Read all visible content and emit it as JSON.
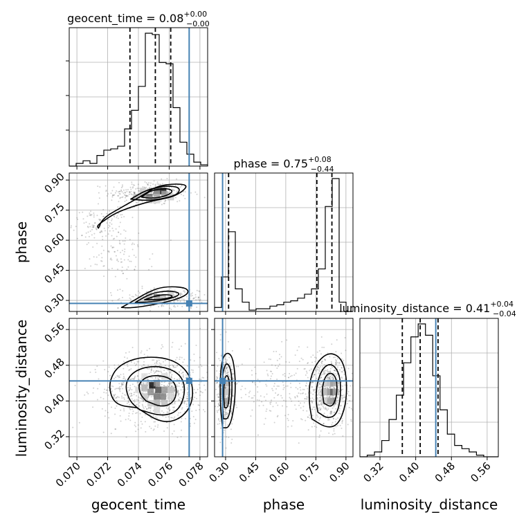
{
  "colors": {
    "truth": "#4682b4",
    "hist": "#000000",
    "quantile": "#000000",
    "grid": "#b0b0b0",
    "scatter": "#555555"
  },
  "chart_data": {
    "type": "corner",
    "parameters": [
      "geocent_time",
      "phase",
      "luminosity_distance"
    ],
    "axis_labels": {
      "geocent_time": "geocent_time",
      "phase": "phase",
      "luminosity_distance": "luminosity_distance"
    },
    "ranges": {
      "geocent_time": [
        0.0695,
        0.0785
      ],
      "phase": [
        0.245,
        0.935
      ],
      "luminosity_distance": [
        0.275,
        0.585
      ]
    },
    "ticks": {
      "geocent_time": [
        "0.070",
        "0.072",
        "0.074",
        "0.076",
        "0.078"
      ],
      "phase": [
        "0.30",
        "0.45",
        "0.60",
        "0.75",
        "0.90"
      ],
      "luminosity_distance": [
        "0.32",
        "0.40",
        "0.48",
        "0.56"
      ]
    },
    "titles": [
      {
        "name": "geocent_time",
        "value": "0.08",
        "plus": "+0.00",
        "minus": "−0.00"
      },
      {
        "name": "phase",
        "value": "0.75",
        "plus": "+0.08",
        "minus": "−0.44"
      },
      {
        "name": "luminosity_distance",
        "value": "0.41",
        "plus": "+0.04",
        "minus": "−0.04"
      }
    ],
    "truths": {
      "geocent_time": 0.0773,
      "phase": 0.285,
      "luminosity_distance": 0.445
    },
    "quantiles": {
      "geocent_time": [
        0.07345,
        0.0751,
        0.0761
      ],
      "phase": [
        0.315,
        0.755,
        0.83
      ],
      "luminosity_distance": [
        0.37,
        0.41,
        0.45
      ]
    },
    "histograms": {
      "geocent_time": {
        "edges_range": [
          0.0695,
          0.0785
        ],
        "counts": [
          0,
          2,
          4,
          2,
          8,
          12,
          13,
          15,
          28,
          42,
          60,
          100,
          99,
          78,
          77,
          44,
          18,
          9,
          3,
          1
        ]
      },
      "phase": {
        "edges_range": [
          0.245,
          0.935
        ],
        "counts": [
          3,
          26,
          60,
          17,
          7,
          1,
          2,
          2,
          4,
          5,
          7,
          8,
          10,
          13,
          17,
          32,
          79,
          100,
          7,
          0
        ]
      },
      "luminosity_distance": {
        "edges_range": [
          0.275,
          0.585
        ],
        "counts": [
          0,
          1,
          3,
          10,
          23,
          38,
          58,
          74,
          82,
          75,
          50,
          29,
          14,
          7,
          5,
          3,
          1,
          0,
          0
        ]
      }
    },
    "pairs": [
      {
        "x": "geocent_time",
        "y": "phase",
        "clouds": [
          {
            "cx": 0.0747,
            "cy": 0.835,
            "sx": 0.0013,
            "sy": 0.03,
            "n": 340
          },
          {
            "cx": 0.0715,
            "cy": 0.68,
            "sx": 0.0009,
            "sy": 0.04,
            "n": 120
          },
          {
            "cx": 0.0728,
            "cy": 0.52,
            "sx": 0.0011,
            "sy": 0.06,
            "n": 90
          },
          {
            "cx": 0.0758,
            "cy": 0.31,
            "sx": 0.0015,
            "sy": 0.025,
            "n": 230
          }
        ],
        "dark_cells": [
          {
            "x": 0.0756,
            "y": 0.845,
            "shade": 0.92
          },
          {
            "x": 0.0752,
            "y": 0.845,
            "shade": 0.75
          },
          {
            "x": 0.0747,
            "y": 0.815,
            "shade": 0.6
          },
          {
            "x": 0.0752,
            "y": 0.83,
            "shade": 0.4
          },
          {
            "x": 0.0743,
            "y": 0.83,
            "shade": 0.35
          },
          {
            "x": 0.0757,
            "y": 0.83,
            "shade": 0.35
          },
          {
            "x": 0.0739,
            "y": 0.815,
            "shade": 0.25
          },
          {
            "x": 0.0752,
            "y": 0.815,
            "shade": 0.3
          },
          {
            "x": 0.0761,
            "y": 0.815,
            "shade": 0.2
          },
          {
            "x": 0.0747,
            "y": 0.8,
            "shade": 0.2
          },
          {
            "x": 0.0752,
            "y": 0.8,
            "shade": 0.15
          },
          {
            "x": 0.0743,
            "y": 0.845,
            "shade": 0.2
          },
          {
            "x": 0.0752,
            "y": 0.315,
            "shade": 0.6
          },
          {
            "x": 0.0747,
            "y": 0.315,
            "shade": 0.4
          },
          {
            "x": 0.0756,
            "y": 0.315,
            "shade": 0.25
          },
          {
            "x": 0.0752,
            "y": 0.3,
            "shade": 0.25
          },
          {
            "x": 0.0743,
            "y": 0.3,
            "shade": 0.18
          },
          {
            "x": 0.0761,
            "y": 0.33,
            "shade": 0.18
          },
          {
            "x": 0.0747,
            "y": 0.33,
            "shade": 0.2
          }
        ],
        "contours": [
          [
            [
              0.0714,
              0.66
            ],
            [
              0.0717,
              0.71
            ],
            [
              0.0728,
              0.76
            ],
            [
              0.0742,
              0.82
            ],
            [
              0.0752,
              0.87
            ],
            [
              0.0764,
              0.882
            ],
            [
              0.0772,
              0.875
            ],
            [
              0.0769,
              0.845
            ],
            [
              0.0762,
              0.815
            ],
            [
              0.0748,
              0.795
            ],
            [
              0.0735,
              0.765
            ],
            [
              0.0725,
              0.735
            ],
            [
              0.0718,
              0.7
            ],
            [
              0.0713,
              0.672
            ],
            [
              0.0714,
              0.66
            ]
          ],
          [
            [
              0.0735,
              0.805
            ],
            [
              0.0745,
              0.85
            ],
            [
              0.0757,
              0.872
            ],
            [
              0.0767,
              0.865
            ],
            [
              0.0766,
              0.83
            ],
            [
              0.0757,
              0.808
            ],
            [
              0.0745,
              0.797
            ],
            [
              0.0735,
              0.805
            ]
          ],
          [
            [
              0.0742,
              0.815
            ],
            [
              0.0748,
              0.848
            ],
            [
              0.0758,
              0.86
            ],
            [
              0.0763,
              0.845
            ],
            [
              0.0758,
              0.82
            ],
            [
              0.0749,
              0.808
            ],
            [
              0.0742,
              0.815
            ]
          ],
          [
            [
              0.0729,
              0.265
            ],
            [
              0.0735,
              0.29
            ],
            [
              0.0747,
              0.345
            ],
            [
              0.0757,
              0.37
            ],
            [
              0.0771,
              0.365
            ],
            [
              0.0773,
              0.335
            ],
            [
              0.0765,
              0.305
            ],
            [
              0.075,
              0.278
            ],
            [
              0.0735,
              0.262
            ],
            [
              0.0729,
              0.265
            ]
          ],
          [
            [
              0.0738,
              0.29
            ],
            [
              0.0748,
              0.335
            ],
            [
              0.076,
              0.35
            ],
            [
              0.0768,
              0.335
            ],
            [
              0.0762,
              0.31
            ],
            [
              0.0748,
              0.292
            ],
            [
              0.0738,
              0.29
            ]
          ],
          [
            [
              0.0744,
              0.303
            ],
            [
              0.0752,
              0.325
            ],
            [
              0.076,
              0.33
            ],
            [
              0.0763,
              0.318
            ],
            [
              0.0755,
              0.305
            ],
            [
              0.0744,
              0.303
            ]
          ]
        ]
      },
      {
        "x": "geocent_time",
        "y": "luminosity_distance",
        "clouds": [
          {
            "cx": 0.0752,
            "cy": 0.425,
            "sx": 0.0017,
            "sy": 0.04,
            "n": 900
          }
        ],
        "dark_cells": [
          {
            "x": 0.0749,
            "y": 0.435,
            "shade": 0.95
          },
          {
            "x": 0.0753,
            "y": 0.425,
            "shade": 0.7
          },
          {
            "x": 0.0752,
            "y": 0.41,
            "shade": 0.55
          },
          {
            "x": 0.0756,
            "y": 0.41,
            "shade": 0.5
          },
          {
            "x": 0.0748,
            "y": 0.42,
            "shade": 0.45
          },
          {
            "x": 0.0757,
            "y": 0.425,
            "shade": 0.4
          },
          {
            "x": 0.0752,
            "y": 0.44,
            "shade": 0.45
          },
          {
            "x": 0.0744,
            "y": 0.43,
            "shade": 0.3
          },
          {
            "x": 0.0761,
            "y": 0.425,
            "shade": 0.25
          },
          {
            "x": 0.0752,
            "y": 0.395,
            "shade": 0.3
          },
          {
            "x": 0.0757,
            "y": 0.395,
            "shade": 0.25
          },
          {
            "x": 0.0748,
            "y": 0.395,
            "shade": 0.2
          },
          {
            "x": 0.0744,
            "y": 0.41,
            "shade": 0.22
          },
          {
            "x": 0.074,
            "y": 0.425,
            "shade": 0.15
          },
          {
            "x": 0.0761,
            "y": 0.41,
            "shade": 0.18
          },
          {
            "x": 0.0752,
            "y": 0.38,
            "shade": 0.15
          },
          {
            "x": 0.0757,
            "y": 0.455,
            "shade": 0.15
          },
          {
            "x": 0.0744,
            "y": 0.455,
            "shade": 0.12
          }
        ],
        "contours": [
          [
            [
              0.0739,
              0.385
            ],
            [
              0.0755,
              0.35
            ],
            [
              0.0768,
              0.36
            ],
            [
              0.0776,
              0.4
            ],
            [
              0.0774,
              0.46
            ],
            [
              0.0762,
              0.495
            ],
            [
              0.0742,
              0.5
            ],
            [
              0.0727,
              0.48
            ],
            [
              0.0721,
              0.445
            ],
            [
              0.0722,
              0.41
            ],
            [
              0.0727,
              0.39
            ],
            [
              0.0739,
              0.385
            ]
          ],
          [
            [
              0.0741,
              0.38
            ],
            [
              0.0756,
              0.365
            ],
            [
              0.0767,
              0.38
            ],
            [
              0.0771,
              0.43
            ],
            [
              0.0766,
              0.465
            ],
            [
              0.0752,
              0.48
            ],
            [
              0.0738,
              0.47
            ],
            [
              0.0731,
              0.44
            ],
            [
              0.0734,
              0.4
            ],
            [
              0.0741,
              0.38
            ]
          ],
          [
            [
              0.0745,
              0.4
            ],
            [
              0.0756,
              0.385
            ],
            [
              0.0764,
              0.4
            ],
            [
              0.0765,
              0.435
            ],
            [
              0.0759,
              0.455
            ],
            [
              0.0747,
              0.458
            ],
            [
              0.074,
              0.44
            ],
            [
              0.0741,
              0.415
            ],
            [
              0.0745,
              0.4
            ]
          ]
        ]
      },
      {
        "x": "phase",
        "y": "luminosity_distance",
        "clouds": [
          {
            "cx": 0.3,
            "cy": 0.425,
            "sx": 0.022,
            "sy": 0.045,
            "n": 350
          },
          {
            "cx": 0.81,
            "cy": 0.425,
            "sx": 0.065,
            "sy": 0.04,
            "n": 650
          },
          {
            "cx": 0.56,
            "cy": 0.43,
            "sx": 0.12,
            "sy": 0.04,
            "n": 170
          }
        ],
        "dark_cells": [
          {
            "x": 0.835,
            "y": 0.42,
            "shade": 0.95
          },
          {
            "x": 0.82,
            "y": 0.42,
            "shade": 0.55
          },
          {
            "x": 0.835,
            "y": 0.4,
            "shade": 0.5
          },
          {
            "x": 0.82,
            "y": 0.44,
            "shade": 0.4
          },
          {
            "x": 0.805,
            "y": 0.42,
            "shade": 0.35
          },
          {
            "x": 0.835,
            "y": 0.44,
            "shade": 0.35
          },
          {
            "x": 0.82,
            "y": 0.4,
            "shade": 0.35
          },
          {
            "x": 0.79,
            "y": 0.42,
            "shade": 0.25
          },
          {
            "x": 0.85,
            "y": 0.42,
            "shade": 0.3
          },
          {
            "x": 0.805,
            "y": 0.44,
            "shade": 0.2
          },
          {
            "x": 0.79,
            "y": 0.4,
            "shade": 0.18
          },
          {
            "x": 0.305,
            "y": 0.42,
            "shade": 0.4
          },
          {
            "x": 0.305,
            "y": 0.4,
            "shade": 0.35
          },
          {
            "x": 0.305,
            "y": 0.44,
            "shade": 0.3
          },
          {
            "x": 0.29,
            "y": 0.42,
            "shade": 0.2
          },
          {
            "x": 0.32,
            "y": 0.42,
            "shade": 0.18
          }
        ],
        "contours": [
          [
            [
              0.285,
              0.34
            ],
            [
              0.32,
              0.34
            ],
            [
              0.345,
              0.39
            ],
            [
              0.35,
              0.45
            ],
            [
              0.335,
              0.5
            ],
            [
              0.305,
              0.51
            ],
            [
              0.28,
              0.49
            ],
            [
              0.272,
              0.44
            ],
            [
              0.275,
              0.38
            ],
            [
              0.285,
              0.34
            ]
          ],
          [
            [
              0.29,
              0.36
            ],
            [
              0.315,
              0.36
            ],
            [
              0.33,
              0.4
            ],
            [
              0.333,
              0.45
            ],
            [
              0.32,
              0.48
            ],
            [
              0.3,
              0.485
            ],
            [
              0.285,
              0.46
            ],
            [
              0.282,
              0.41
            ],
            [
              0.29,
              0.36
            ]
          ],
          [
            [
              0.295,
              0.385
            ],
            [
              0.312,
              0.385
            ],
            [
              0.32,
              0.42
            ],
            [
              0.318,
              0.45
            ],
            [
              0.303,
              0.46
            ],
            [
              0.292,
              0.44
            ],
            [
              0.29,
              0.41
            ],
            [
              0.295,
              0.385
            ]
          ],
          [
            [
              0.73,
              0.36
            ],
            [
              0.8,
              0.34
            ],
            [
              0.86,
              0.345
            ],
            [
              0.9,
              0.39
            ],
            [
              0.905,
              0.45
            ],
            [
              0.88,
              0.495
            ],
            [
              0.82,
              0.51
            ],
            [
              0.76,
              0.49
            ],
            [
              0.72,
              0.45
            ],
            [
              0.715,
              0.4
            ],
            [
              0.73,
              0.36
            ]
          ],
          [
            [
              0.76,
              0.375
            ],
            [
              0.81,
              0.36
            ],
            [
              0.855,
              0.37
            ],
            [
              0.875,
              0.41
            ],
            [
              0.87,
              0.46
            ],
            [
              0.83,
              0.485
            ],
            [
              0.785,
              0.475
            ],
            [
              0.755,
              0.44
            ],
            [
              0.75,
              0.4
            ],
            [
              0.76,
              0.375
            ]
          ],
          [
            [
              0.79,
              0.395
            ],
            [
              0.83,
              0.385
            ],
            [
              0.855,
              0.41
            ],
            [
              0.855,
              0.45
            ],
            [
              0.825,
              0.465
            ],
            [
              0.795,
              0.455
            ],
            [
              0.78,
              0.425
            ],
            [
              0.79,
              0.395
            ]
          ]
        ]
      }
    ]
  }
}
